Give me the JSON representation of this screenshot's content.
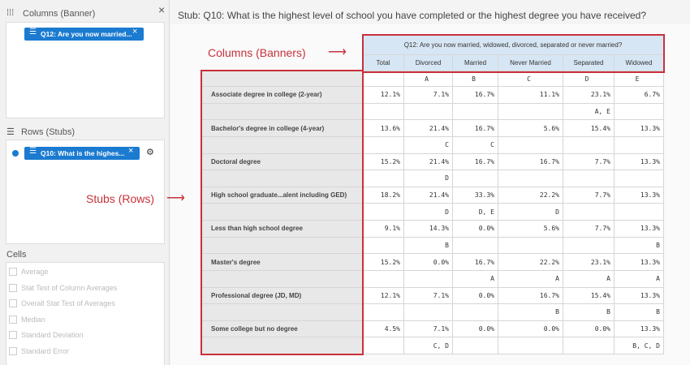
{
  "sidebar": {
    "columns_label": "Columns (Banner)",
    "columns_chip": "Q12: Are you now married...",
    "rows_label": "Rows (Stubs)",
    "rows_chip": "Q10: What is the highes...",
    "cells_label": "Cells",
    "cells_options": [
      "Average",
      "Stat Test of Column Averages",
      "Overall Stat Test of Averages",
      "Median",
      "Standard Deviation",
      "Standard Error"
    ]
  },
  "main": {
    "stub_title": "Stub: Q10: What is the highest level of school you have completed or the highest degree you have received?",
    "annotations": {
      "columns": "Columns (Banners)",
      "stubs": "Stubs (Rows)"
    },
    "table": {
      "banner": "Q12: Are you now married, widowed, divorced, separated or never married?",
      "headers": [
        "Total",
        "Divorced",
        "Married",
        "Never Married",
        "Separated",
        "Widowed"
      ],
      "letters": [
        "A",
        "B",
        "C",
        "D",
        "E"
      ],
      "rows": [
        {
          "label": "Associate degree in college (2-year)",
          "values": [
            "12.1%",
            "7.1%",
            "16.7%",
            "11.1%",
            "23.1%",
            "6.7%"
          ],
          "sig": [
            null,
            null,
            null,
            "A, E",
            null
          ]
        },
        {
          "label": "Bachelor's degree in college (4-year)",
          "values": [
            "13.6%",
            "21.4%",
            "16.7%",
            "5.6%",
            "15.4%",
            "13.3%"
          ],
          "sig": [
            "C",
            "C",
            null,
            null,
            null
          ]
        },
        {
          "label": "Doctoral degree",
          "values": [
            "15.2%",
            "21.4%",
            "16.7%",
            "16.7%",
            "7.7%",
            "13.3%"
          ],
          "sig": [
            "D",
            null,
            null,
            null,
            null
          ]
        },
        {
          "label": "High school graduate...alent including GED)",
          "values": [
            "18.2%",
            "21.4%",
            "33.3%",
            "22.2%",
            "7.7%",
            "13.3%"
          ],
          "sig": [
            "D",
            "D, E",
            "D",
            null,
            null
          ]
        },
        {
          "label": "Less than high school degree",
          "values": [
            "9.1%",
            "14.3%",
            "0.0%",
            "5.6%",
            "7.7%",
            "13.3%"
          ],
          "sig": [
            "B",
            null,
            null,
            null,
            "B"
          ]
        },
        {
          "label": "Master's degree",
          "values": [
            "15.2%",
            "0.0%",
            "16.7%",
            "22.2%",
            "23.1%",
            "13.3%"
          ],
          "sig": [
            null,
            "A",
            "A",
            "A",
            "A"
          ]
        },
        {
          "label": "Professional degree (JD, MD)",
          "values": [
            "12.1%",
            "7.1%",
            "0.0%",
            "16.7%",
            "15.4%",
            "13.3%"
          ],
          "sig": [
            null,
            null,
            "B",
            "B",
            "B"
          ]
        },
        {
          "label": "Some college but no degree",
          "values": [
            "4.5%",
            "7.1%",
            "0.0%",
            "0.0%",
            "0.0%",
            "13.3%"
          ],
          "sig": [
            "C, D",
            null,
            null,
            null,
            "B, C, D"
          ]
        }
      ]
    }
  }
}
